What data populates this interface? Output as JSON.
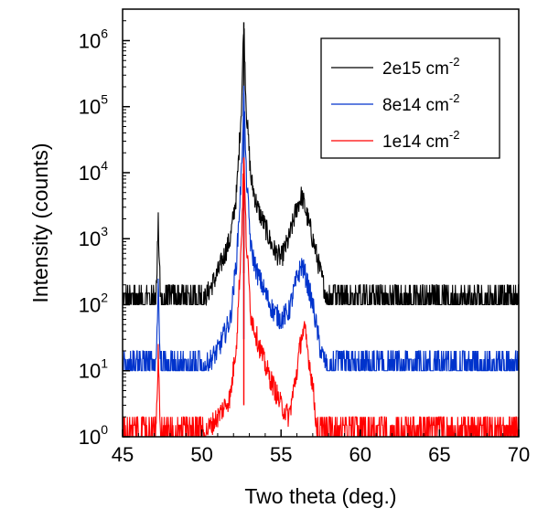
{
  "chart_data": {
    "type": "line",
    "xlabel": "Two theta (deg.)",
    "ylabel": "Intensity (counts)",
    "xlim": [
      45,
      70
    ],
    "ylim": [
      1,
      3000000
    ],
    "yscale": "log",
    "grid": false,
    "legend_position": "top-right",
    "x_ticks": [
      45,
      50,
      55,
      60,
      65,
      70
    ],
    "x_tick_labels": [
      "45",
      "50",
      "55",
      "60",
      "65",
      "70"
    ],
    "y_ticks": [
      1,
      10,
      100,
      1000,
      10000,
      100000,
      1000000
    ],
    "y_tick_base": "10",
    "y_tick_exponents": [
      "0",
      "1",
      "2",
      "3",
      "4",
      "5",
      "6"
    ],
    "series": [
      {
        "name_base": "2e15 cm",
        "name_exp": "-2",
        "color": "#000000",
        "baseline": 100,
        "noise_max": 200,
        "x": [
          45,
          47.1,
          47.25,
          47.4,
          50,
          51,
          51.8,
          52.2,
          52.5,
          52.65,
          52.8,
          53.1,
          53.5,
          54,
          54.5,
          55,
          55.5,
          56,
          56.3,
          56.5,
          57,
          57.5,
          58,
          60,
          70
        ],
        "y": [
          100,
          100,
          1700,
          100,
          100,
          300,
          1000,
          5000,
          100000,
          1900000,
          100000,
          8000,
          3000,
          1500,
          700,
          500,
          1000,
          3000,
          4500,
          3000,
          1000,
          300,
          100,
          100,
          100
        ]
      },
      {
        "name_base": "8e14 cm",
        "name_exp": "-2",
        "color": "#0033cc",
        "baseline": 10,
        "noise_max": 20,
        "x": [
          45,
          47.1,
          47.25,
          47.4,
          50,
          51,
          51.8,
          52.2,
          52.5,
          52.65,
          52.8,
          53.1,
          53.5,
          54,
          54.5,
          55,
          55.5,
          56,
          56.3,
          56.5,
          57,
          57.5,
          58,
          70
        ],
        "y": [
          10,
          10,
          180,
          10,
          10,
          20,
          60,
          500,
          10000,
          160000,
          10000,
          700,
          300,
          150,
          80,
          60,
          80,
          250,
          400,
          300,
          100,
          20,
          10,
          10
        ]
      },
      {
        "name_base": "1e14 cm",
        "name_exp": "-2",
        "color": "#ff0000",
        "baseline": 1,
        "noise_max": 2,
        "x": [
          45,
          47.1,
          47.25,
          47.4,
          50,
          51,
          51.8,
          52.2,
          52.5,
          52.65,
          52.8,
          53.1,
          53.5,
          54,
          54.5,
          55,
          55.5,
          56,
          56.3,
          56.5,
          57,
          57.3,
          70
        ],
        "y": [
          1,
          1,
          18,
          1,
          1,
          2,
          4,
          30,
          1000,
          17000,
          1000,
          70,
          30,
          12,
          6,
          3,
          2,
          10,
          35,
          40,
          6,
          1,
          1
        ]
      }
    ]
  }
}
